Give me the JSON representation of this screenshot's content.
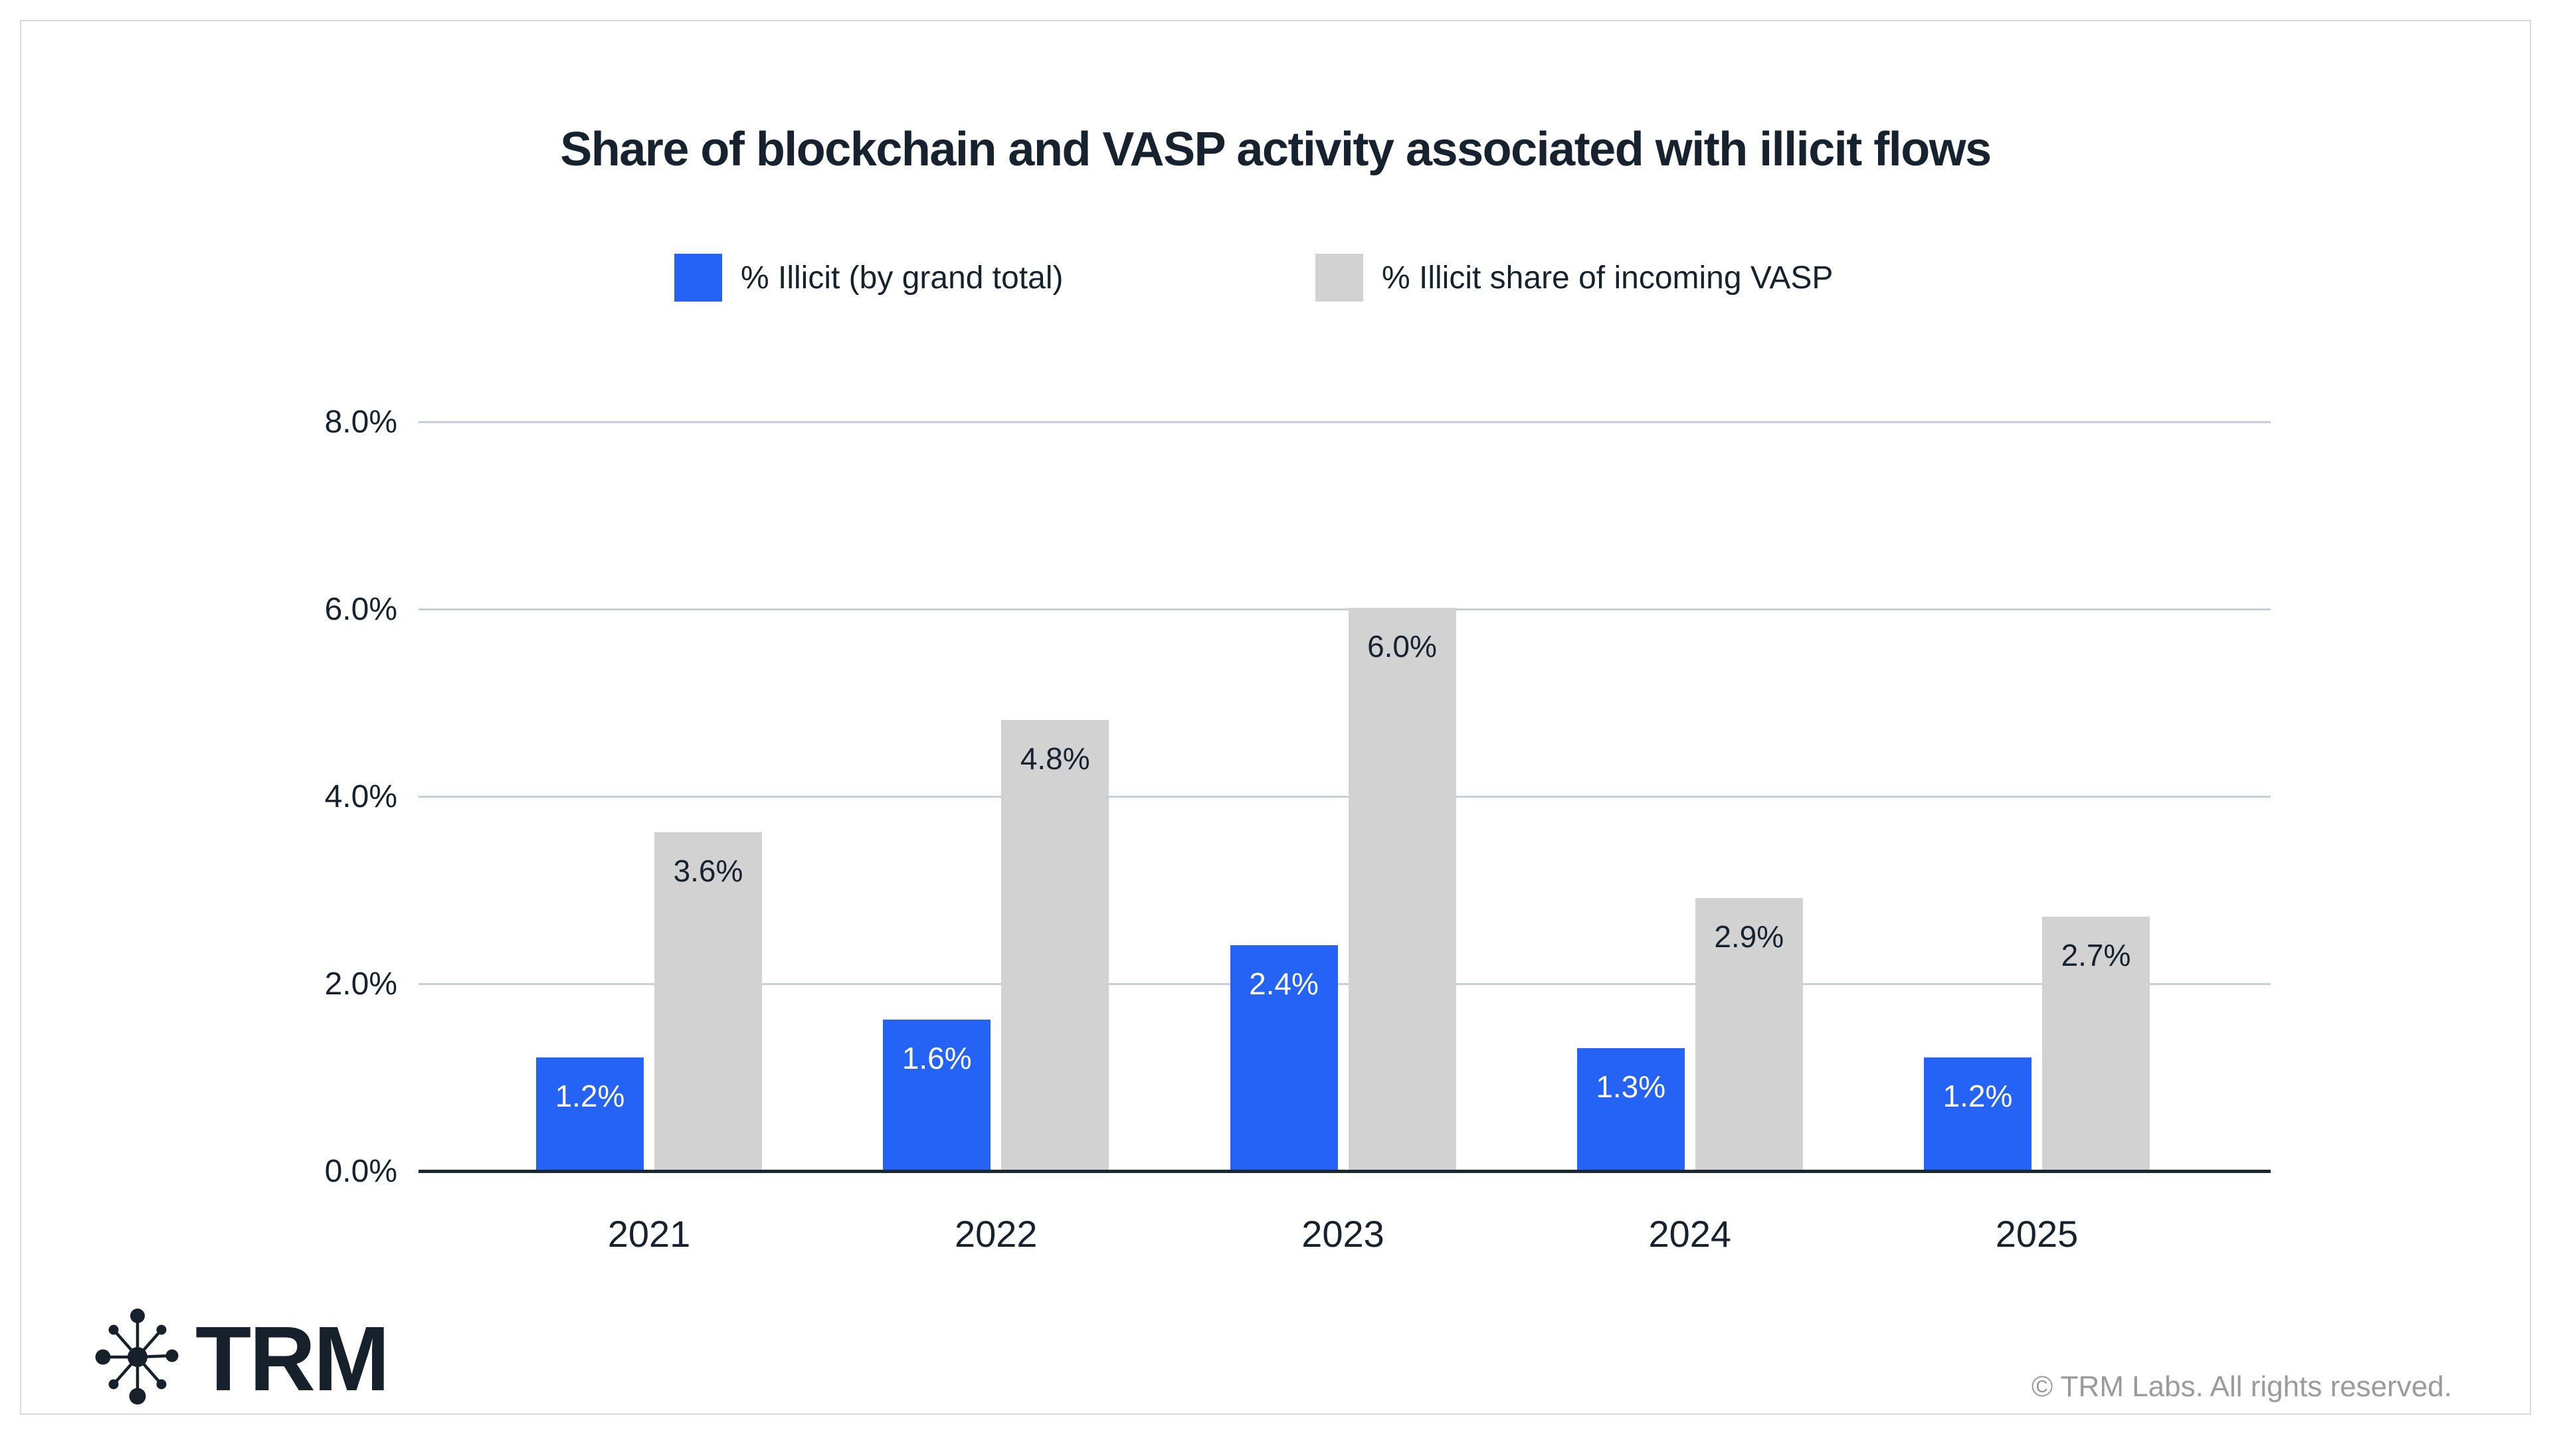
{
  "chart_data": {
    "type": "bar",
    "title": "Share of blockchain and VASP activity associated with illicit flows",
    "categories": [
      "2021",
      "2022",
      "2023",
      "2024",
      "2025"
    ],
    "series": [
      {
        "name": "% Illicit (by grand total)",
        "color": "#2463f6",
        "label_color": "#ffffff",
        "values": [
          1.2,
          1.6,
          2.4,
          1.3,
          1.2
        ]
      },
      {
        "name": "% Illicit share of incoming VASP",
        "color": "#d2d2d2",
        "label_color": "#16222e",
        "values": [
          3.6,
          4.8,
          6.0,
          2.9,
          2.7
        ]
      }
    ],
    "ylim": [
      0,
      8
    ],
    "yticks": [
      0,
      2,
      4,
      6,
      8
    ],
    "ytick_suffix": "%",
    "value_label_suffix": "%",
    "grid": "horizontal",
    "legend_position": "top-center",
    "value_labels": "inside-top"
  },
  "colors": {
    "accent_blue": "#2463f6",
    "neutral_gray": "#d2d2d2",
    "navy_text": "#16222e",
    "gridline": "#c7cdd9",
    "axis": "#1b2733",
    "copyright_gray": "#9b9b9b",
    "card_border": "#dadada",
    "background": "#ffffff"
  },
  "footer": {
    "logo_text": "TRM",
    "copyright": "© TRM Labs. All rights reserved."
  }
}
